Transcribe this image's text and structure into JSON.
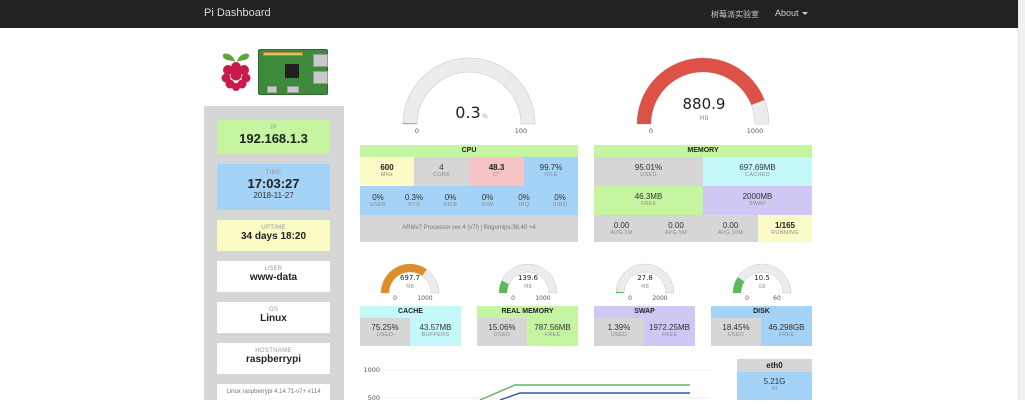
{
  "nav": {
    "brand": "Pi Dashboard",
    "lab_link": "树莓派实验室",
    "about_link": "About"
  },
  "sidebar": {
    "ip": {
      "label": "IP",
      "value": "192.168.1.3"
    },
    "time": {
      "label": "TIME",
      "value": "17:03:27",
      "date": "2018-11-27"
    },
    "uptime": {
      "label": "UPTIME",
      "value": "34 days 18:20"
    },
    "user": {
      "label": "USER",
      "value": "www-data"
    },
    "os": {
      "label": "OS",
      "value": "Linux"
    },
    "hostname": {
      "label": "HOSTNAME",
      "value": "raspberrypi"
    },
    "uname": "Linux raspberrypi 4.14.71-v7+ #114"
  },
  "cpu_gauge": {
    "value": "0.3",
    "unit": "%",
    "min": "0",
    "max": "100",
    "level": 0.003
  },
  "mem_gauge": {
    "value": "880.9",
    "unit": "MB",
    "min": "0",
    "max": "1000",
    "level": 0.8809
  },
  "cpu": {
    "title": "CPU",
    "freq": "600",
    "freq_label": "MHz",
    "cores": "4",
    "cores_label": "CORE",
    "temp": "48.3",
    "temp_label": "C°",
    "idle": "99.7%",
    "idle_label": "IDLE",
    "stats": [
      {
        "v": "0%",
        "k": "USER"
      },
      {
        "v": "0.3%",
        "k": "SYS"
      },
      {
        "v": "0%",
        "k": "NICE"
      },
      {
        "v": "0%",
        "k": "IOW"
      },
      {
        "v": "0%",
        "k": "IRQ"
      },
      {
        "v": "0%",
        "k": "SIRQ"
      }
    ],
    "model": "ARMv7 Processor rev 4 (v7l) | Bogomips:38.40 ×4"
  },
  "memory": {
    "title": "MEMORY",
    "used": "95.01%",
    "used_label": "USED",
    "cached": "697.69MB",
    "cached_label": "CACHED",
    "free": "46.3MB",
    "free_label": "FREE",
    "swap": "2000MB",
    "swap_label": "SWAP",
    "loads": [
      {
        "v": "0.00",
        "k": "AVG.1M"
      },
      {
        "v": "0.00",
        "k": "AVG.5M"
      },
      {
        "v": "0.00",
        "k": "AVG.10M"
      }
    ],
    "running": "1/165",
    "running_label": "RUNNING"
  },
  "small_gauges": [
    {
      "name": "cache",
      "value": "697.7",
      "unit": "MB",
      "min": "0",
      "max": "1000",
      "level": 0.6977,
      "color": "#dc8d2c"
    },
    {
      "name": "real",
      "value": "139.6",
      "unit": "MB",
      "min": "0",
      "max": "1000",
      "level": 0.1396,
      "color": "#5cb85c"
    },
    {
      "name": "swap",
      "value": "27.8",
      "unit": "MB",
      "min": "0",
      "max": "2000",
      "level": 0.0139,
      "color": "#5cb85c"
    },
    {
      "name": "disk",
      "value": "10.5",
      "unit": "GB",
      "min": "0",
      "max": "60",
      "level": 0.1845,
      "color": "#5cb85c"
    }
  ],
  "cache": {
    "title": "CACHE",
    "used": "75.25%",
    "used_label": "USED",
    "buffers": "43.57MB",
    "buffers_label": "BUFFERS"
  },
  "realmem": {
    "title": "REAL MEMORY",
    "used": "15.06%",
    "used_label": "USED",
    "free": "787.56MB",
    "free_label": "FREE"
  },
  "swap": {
    "title": "SWAP",
    "used": "1.39%",
    "used_label": "USED",
    "free": "1972.25MB",
    "free_label": "FREE"
  },
  "disk": {
    "title": "DISK",
    "used": "18.45%",
    "used_label": "USED",
    "free": "46.298GB",
    "free_label": "FREE"
  },
  "net": {
    "iface": "eth0",
    "in_value": "5.21G",
    "in_label": "IN",
    "y_ticks": [
      "1000",
      "500"
    ]
  },
  "colors": {
    "green_bg": "#c5f5a0",
    "blue_bg": "#a5d2f7",
    "yellow_bg": "#fbfbc5",
    "gray_bg": "#d6d6d6",
    "pink_bg": "#f6c4c4",
    "cyan_bg": "#c5f9f9",
    "purple_bg": "#d1c7f5",
    "gauge_red": "#dd5247"
  }
}
